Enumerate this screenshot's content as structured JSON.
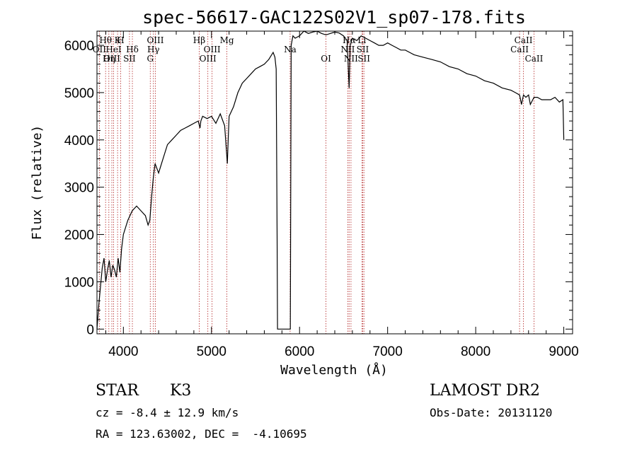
{
  "chart_data": {
    "type": "line",
    "title": "spec-56617-GAC122S02V1_sp07-178.fits",
    "xlabel": "Wavelength (Å)",
    "ylabel": "Flux (relative)",
    "xlim": [
      3700,
      9100
    ],
    "ylim": [
      -100,
      6300
    ],
    "xticks": [
      4000,
      5000,
      6000,
      7000,
      8000,
      9000
    ],
    "yticks": [
      0,
      1000,
      2000,
      3000,
      4000,
      5000,
      6000
    ],
    "grid": false,
    "series": [
      {
        "color": "#000000",
        "x": [
          3700,
          3720,
          3740,
          3760,
          3780,
          3800,
          3820,
          3840,
          3860,
          3880,
          3900,
          3920,
          3940,
          3960,
          3980,
          4000,
          4050,
          4100,
          4150,
          4200,
          4250,
          4280,
          4300,
          4320,
          4340,
          4360,
          4400,
          4450,
          4500,
          4550,
          4600,
          4650,
          4700,
          4750,
          4800,
          4850,
          4870,
          4880,
          4900,
          4950,
          5000,
          5050,
          5100,
          5150,
          5180,
          5190,
          5200,
          5250,
          5300,
          5350,
          5400,
          5450,
          5500,
          5550,
          5600,
          5650,
          5700,
          5720,
          5735,
          5745,
          5750,
          5760,
          5800,
          5850,
          5880,
          5895,
          5905,
          5915,
          5925,
          5950,
          6000,
          6050,
          6100,
          6150,
          6200,
          6250,
          6300,
          6350,
          6400,
          6450,
          6500,
          6540,
          6563,
          6575,
          6600,
          6650,
          6700,
          6750,
          6800,
          6850,
          6900,
          6950,
          7000,
          7050,
          7100,
          7150,
          7200,
          7250,
          7300,
          7400,
          7500,
          7600,
          7700,
          7800,
          7900,
          8000,
          8100,
          8200,
          8300,
          8400,
          8450,
          8498,
          8520,
          8542,
          8570,
          8600,
          8620,
          8662,
          8700,
          8750,
          8800,
          8850,
          8900,
          8950,
          8990,
          9000
        ],
        "y": [
          0,
          500,
          900,
          1300,
          1500,
          1000,
          1250,
          1450,
          1100,
          1350,
          1250,
          1100,
          1500,
          1200,
          1700,
          2000,
          2300,
          2500,
          2600,
          2500,
          2400,
          2200,
          2300,
          2800,
          3200,
          3500,
          3300,
          3600,
          3900,
          4000,
          4100,
          4200,
          4250,
          4300,
          4350,
          4400,
          4250,
          4400,
          4500,
          4450,
          4500,
          4350,
          4550,
          4300,
          3500,
          4000,
          4500,
          4700,
          5000,
          5200,
          5300,
          5400,
          5500,
          5550,
          5600,
          5700,
          5850,
          5750,
          5500,
          2000,
          0,
          0,
          0,
          0,
          0,
          0,
          6000,
          6100,
          6200,
          6150,
          6200,
          6300,
          6250,
          6280,
          6300,
          6250,
          6220,
          6250,
          6280,
          6260,
          6200,
          6100,
          5100,
          6000,
          6150,
          6100,
          6200,
          6150,
          6100,
          6050,
          6000,
          6000,
          6050,
          6000,
          5950,
          5900,
          5900,
          5850,
          5800,
          5750,
          5700,
          5650,
          5550,
          5500,
          5400,
          5350,
          5250,
          5200,
          5100,
          5050,
          5000,
          4950,
          4750,
          4950,
          4900,
          4950,
          4750,
          4900,
          4900,
          4850,
          4850,
          4850,
          4900,
          4800,
          4850,
          4000
        ]
      }
    ],
    "spectral_lines": [
      {
        "label": "Hθ",
        "x": 3798
      },
      {
        "label": "OII",
        "x": 3727
      },
      {
        "label": "OIII",
        "x": 3869
      },
      {
        "label": "K",
        "x": 3934
      },
      {
        "label": "HeI",
        "x": 3889
      },
      {
        "label": "Hη",
        "x": 3835
      },
      {
        "label": "H",
        "x": 3969
      },
      {
        "label": "Hδ",
        "x": 4102
      },
      {
        "label": "SII",
        "x": 4069
      },
      {
        "label": "OIII",
        "x": 4363
      },
      {
        "label": "Hγ",
        "x": 4341
      },
      {
        "label": "G",
        "x": 4305
      },
      {
        "label": "Hβ",
        "x": 4861
      },
      {
        "label": "OIII",
        "x": 5007
      },
      {
        "label": "OIII",
        "x": 4959
      },
      {
        "label": "Mg",
        "x": 5175
      },
      {
        "label": "Na",
        "x": 5893
      },
      {
        "label": "OI",
        "x": 6300
      },
      {
        "label": "Hα",
        "x": 6563
      },
      {
        "label": "SII",
        "x": 6717
      },
      {
        "label": "NII",
        "x": 6584
      },
      {
        "label": "Li",
        "x": 6708
      },
      {
        "label": "NII",
        "x": 6548
      },
      {
        "label": "SII",
        "x": 6731
      },
      {
        "label": "CaII",
        "x": 8542
      },
      {
        "label": "CaII",
        "x": 8498
      },
      {
        "label": "CaII",
        "x": 8662
      }
    ]
  },
  "info": {
    "class_label": "STAR",
    "subclass_label": "K3",
    "survey_label": "LAMOST DR2",
    "redshift_text": "cz = -8.4 ± 12.9 km/s",
    "obs_date_text": "Obs-Date: 20131120",
    "coords_text": "RA = 123.63002, DEC =  -4.10695"
  }
}
